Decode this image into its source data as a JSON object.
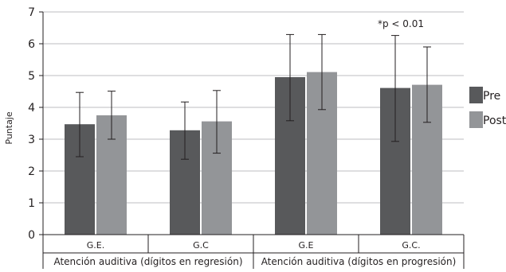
{
  "chart_data": {
    "type": "bar",
    "ylabel": "Puntaje",
    "ylim": [
      0,
      7
    ],
    "yticks": [
      "0",
      "1",
      "2",
      "3",
      "4",
      "5",
      "6",
      "7"
    ],
    "grid": true,
    "legend_position": "right",
    "categories": [
      "G.E.",
      "G.C",
      "G.E",
      "G.C."
    ],
    "groups": [
      {
        "label": "Atención auditiva (dígitos en regresión)"
      },
      {
        "label": "Atención auditiva (dígitos en progresión)"
      }
    ],
    "series": [
      {
        "name": "Pre",
        "color": "#58595b",
        "values": [
          3.47,
          3.28,
          4.95,
          4.61
        ],
        "error_low": [
          2.45,
          2.37,
          3.58,
          2.93
        ],
        "error_high": [
          4.47,
          4.17,
          6.29,
          6.26
        ]
      },
      {
        "name": "Post",
        "color": "#939598",
        "values": [
          3.75,
          3.56,
          5.11,
          4.71
        ],
        "error_low": [
          3.0,
          2.56,
          3.93,
          3.53
        ],
        "error_high": [
          4.51,
          4.53,
          6.29,
          5.9
        ]
      }
    ],
    "annotations": [
      {
        "text": "*p < 0.01",
        "category_index": 3
      }
    ]
  }
}
